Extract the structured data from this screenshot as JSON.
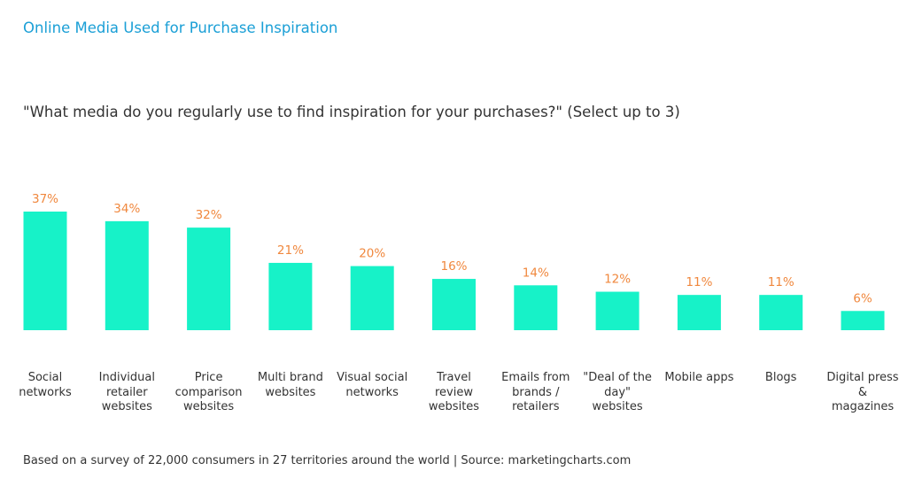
{
  "chart_data": {
    "type": "bar",
    "title": "Online Media Used for Purchase Inspiration",
    "subtitle": "\"What media do you regularly use to find inspiration for your purchases?\" (Select up to 3)",
    "note": "Based on a survey of 22,000 consumers in 27 territories around the world | Source: marketingcharts.com",
    "categories": [
      "Social networks",
      "Individual retailer websites",
      "Price comparison websites",
      "Multi brand websites",
      "Visual social networks",
      "Travel review websites",
      "Emails from brands / retailers",
      "\"Deal of the day\" websites",
      "Mobile apps",
      "Blogs",
      "Digital press & magazines"
    ],
    "values": [
      37,
      34,
      32,
      21,
      20,
      16,
      14,
      12,
      11,
      11,
      6
    ],
    "value_labels": [
      "37%",
      "34%",
      "32%",
      "21%",
      "20%",
      "16%",
      "14%",
      "12%",
      "11%",
      "11%",
      "6%"
    ],
    "color": "#17f2c8"
  }
}
